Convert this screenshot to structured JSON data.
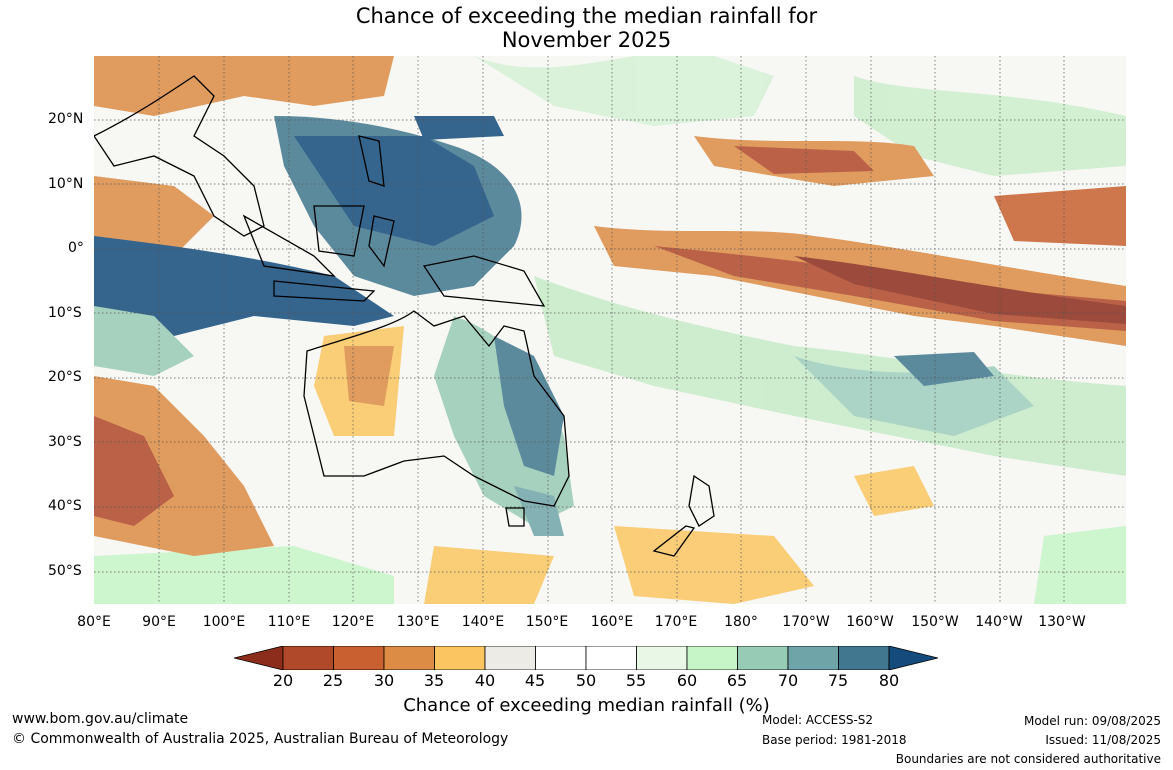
{
  "title": {
    "line1": "Chance of exceeding the median rainfall for",
    "line2": "November 2025"
  },
  "map": {
    "lat_labels": [
      "20°N",
      "10°N",
      "0°",
      "10°S",
      "20°S",
      "30°S",
      "40°S",
      "50°S"
    ],
    "lon_labels": [
      "80°E",
      "90°E",
      "100°E",
      "110°E",
      "120°E",
      "130°E",
      "140°E",
      "150°E",
      "160°E",
      "170°E",
      "180°",
      "170°W",
      "160°W",
      "150°W",
      "140°W",
      "130°W"
    ]
  },
  "colorbar": {
    "ticks": [
      "20",
      "25",
      "30",
      "35",
      "40",
      "45",
      "50",
      "55",
      "60",
      "65",
      "70",
      "75",
      "80"
    ],
    "colors": [
      "#8c2d1c",
      "#b0482a",
      "#c8602f",
      "#dc8c44",
      "#fbc662",
      "#ecebe6",
      "#ffffff",
      "#ffffff",
      "#e8f7e6",
      "#c6f6c8",
      "#98cbb5",
      "#6fa5a9",
      "#41788f",
      "#144b7c"
    ],
    "title": "Chance of exceeding median rainfall (%)"
  },
  "footer": {
    "website": "www.bom.gov.au/climate",
    "copyright": "© Commonwealth of Australia 2025, Australian Bureau of Meteorology",
    "model": "Model: ACCESS-S2",
    "base_period": "Base period: 1981-2018",
    "model_run": "Model run: 09/08/2025",
    "issued": "Issued: 11/08/2025",
    "disclaimer": "Boundaries are not considered authoritative"
  }
}
